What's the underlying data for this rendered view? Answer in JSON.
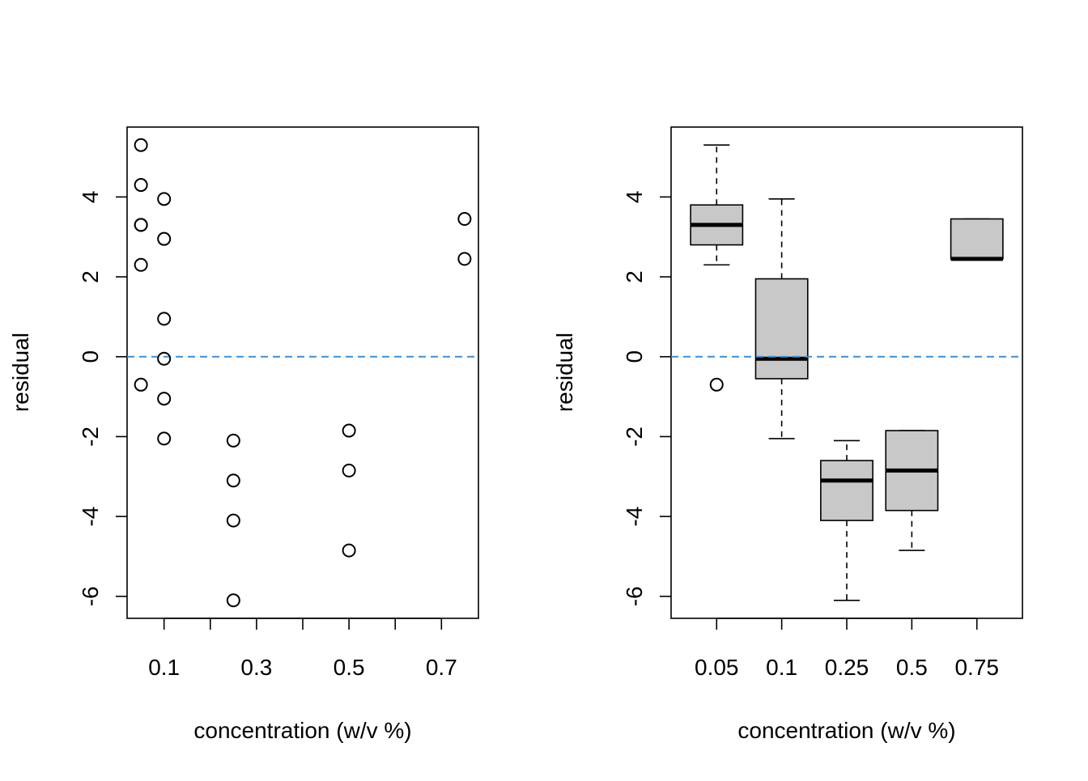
{
  "chart_data": [
    {
      "type": "scatter",
      "title": "",
      "xlabel": "concentration (w/v %)",
      "ylabel": "residual",
      "xlim": [
        0.02,
        0.78
      ],
      "ylim": [
        -6.55,
        5.75
      ],
      "x_ticks": [
        0.1,
        0.2,
        0.3,
        0.4,
        0.5,
        0.6,
        0.7
      ],
      "x_tick_labels": [
        "0.1",
        "",
        "0.3",
        "",
        "0.5",
        "",
        "0.7"
      ],
      "y_ticks": [
        -6,
        -4,
        -2,
        0,
        2,
        4
      ],
      "y_tick_labels": [
        "-6",
        "-4",
        "-2",
        "0",
        "2",
        "4"
      ],
      "reference_line": {
        "y": 0,
        "style": "dashed",
        "color": "#3a8fd6"
      },
      "grid": false,
      "legend": "none",
      "points": [
        {
          "x": 0.05,
          "y": 5.3
        },
        {
          "x": 0.05,
          "y": 4.3
        },
        {
          "x": 0.05,
          "y": 3.3
        },
        {
          "x": 0.05,
          "y": 3.3
        },
        {
          "x": 0.05,
          "y": 2.3
        },
        {
          "x": 0.05,
          "y": -0.7
        },
        {
          "x": 0.1,
          "y": 3.95
        },
        {
          "x": 0.1,
          "y": 2.95
        },
        {
          "x": 0.1,
          "y": 0.95
        },
        {
          "x": 0.1,
          "y": -0.05
        },
        {
          "x": 0.1,
          "y": -1.05
        },
        {
          "x": 0.1,
          "y": -2.05
        },
        {
          "x": 0.25,
          "y": -2.1
        },
        {
          "x": 0.25,
          "y": -3.1
        },
        {
          "x": 0.25,
          "y": -4.1
        },
        {
          "x": 0.25,
          "y": -6.1
        },
        {
          "x": 0.5,
          "y": -1.85
        },
        {
          "x": 0.5,
          "y": -2.85
        },
        {
          "x": 0.5,
          "y": -4.85
        },
        {
          "x": 0.75,
          "y": 3.45
        },
        {
          "x": 0.75,
          "y": 2.45
        }
      ]
    },
    {
      "type": "boxplot",
      "title": "",
      "xlabel": "concentration (w/v %)",
      "ylabel": "residual",
      "ylim": [
        -6.55,
        5.75
      ],
      "y_ticks": [
        -6,
        -4,
        -2,
        0,
        2,
        4
      ],
      "y_tick_labels": [
        "-6",
        "-4",
        "-2",
        "0",
        "2",
        "4"
      ],
      "categories": [
        "0.05",
        "0.1",
        "0.25",
        "0.5",
        "0.75"
      ],
      "reference_line": {
        "y": 0,
        "style": "dashed",
        "color": "#3a8fd6"
      },
      "box_fill": "#c8c8c8",
      "grid": false,
      "legend": "none",
      "boxes": [
        {
          "lower_whisker": 2.3,
          "q1": 2.8,
          "median": 3.3,
          "q3": 3.8,
          "upper_whisker": 5.3,
          "outliers": [
            -0.7
          ]
        },
        {
          "lower_whisker": -2.05,
          "q1": -0.55,
          "median": -0.05,
          "q3": 1.95,
          "upper_whisker": 3.95,
          "outliers": []
        },
        {
          "lower_whisker": -6.1,
          "q1": -4.1,
          "median": -3.1,
          "q3": -2.6,
          "upper_whisker": -2.1,
          "outliers": []
        },
        {
          "lower_whisker": -4.85,
          "q1": -3.85,
          "median": -2.85,
          "q3": -1.85,
          "upper_whisker": -1.85,
          "outliers": []
        },
        {
          "lower_whisker": 2.45,
          "q1": 2.45,
          "median": 2.45,
          "q3": 3.45,
          "upper_whisker": 3.45,
          "outliers": []
        }
      ]
    }
  ]
}
